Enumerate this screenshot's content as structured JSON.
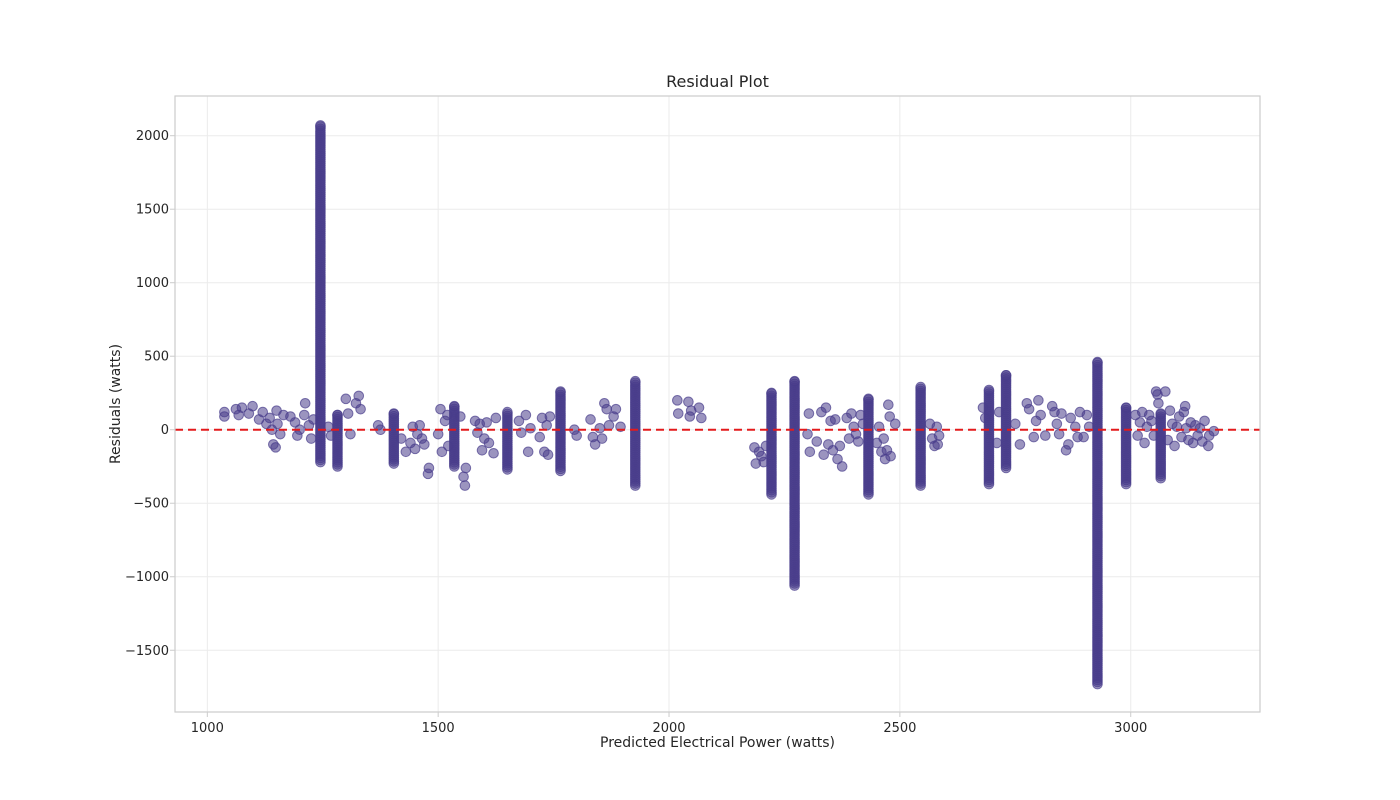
{
  "chart_data": {
    "type": "scatter",
    "title": "Residual Plot",
    "xlabel": "Predicted Electrical Power (watts)",
    "ylabel": "Residuals (watts)",
    "xlim": [
      930,
      3280
    ],
    "ylim": [
      -1920,
      2270
    ],
    "xticks": [
      1000,
      1500,
      2000,
      2500,
      3000
    ],
    "yticks": [
      -1500,
      -1000,
      -500,
      0,
      500,
      1000,
      1500,
      2000
    ],
    "xtick_labels": [
      "1000",
      "1500",
      "2000",
      "2500",
      "3000"
    ],
    "ytick_labels": [
      "−1500",
      "−1000",
      "−500",
      "0",
      "500",
      "1000",
      "1500",
      "2000"
    ],
    "grid": true,
    "reference_line": {
      "y": 0,
      "style": "dashed",
      "color": "#e31a1c"
    },
    "point_color": "#483D8B",
    "columns": [
      {
        "x": 1245,
        "ymin": -220,
        "ymax": 2070
      },
      {
        "x": 1282,
        "ymin": -250,
        "ymax": 100
      },
      {
        "x": 1404,
        "ymin": -230,
        "ymax": 110
      },
      {
        "x": 1535,
        "ymin": -250,
        "ymax": 160
      },
      {
        "x": 1650,
        "ymin": -270,
        "ymax": 120
      },
      {
        "x": 1765,
        "ymin": -280,
        "ymax": 260
      },
      {
        "x": 1927,
        "ymin": -380,
        "ymax": 330
      },
      {
        "x": 2222,
        "ymin": -440,
        "ymax": 250
      },
      {
        "x": 2272,
        "ymin": -1060,
        "ymax": 330
      },
      {
        "x": 2432,
        "ymin": -440,
        "ymax": 210
      },
      {
        "x": 2545,
        "ymin": -380,
        "ymax": 290
      },
      {
        "x": 2693,
        "ymin": -370,
        "ymax": 270
      },
      {
        "x": 2730,
        "ymin": -260,
        "ymax": 370
      },
      {
        "x": 2928,
        "ymin": -1730,
        "ymax": 460
      },
      {
        "x": 2990,
        "ymin": -370,
        "ymax": 150
      },
      {
        "x": 3065,
        "ymin": -330,
        "ymax": 110
      }
    ],
    "points": [
      [
        1037,
        120
      ],
      [
        1037,
        90
      ],
      [
        1062,
        140
      ],
      [
        1068,
        100
      ],
      [
        1075,
        150
      ],
      [
        1090,
        110
      ],
      [
        1098,
        160
      ],
      [
        1112,
        70
      ],
      [
        1120,
        120
      ],
      [
        1128,
        40
      ],
      [
        1135,
        80
      ],
      [
        1140,
        0
      ],
      [
        1143,
        -100
      ],
      [
        1148,
        -120
      ],
      [
        1150,
        130
      ],
      [
        1152,
        40
      ],
      [
        1158,
        -30
      ],
      [
        1165,
        100
      ],
      [
        1180,
        90
      ],
      [
        1190,
        50
      ],
      [
        1195,
        -40
      ],
      [
        1200,
        0
      ],
      [
        1210,
        100
      ],
      [
        1212,
        180
      ],
      [
        1220,
        30
      ],
      [
        1225,
        -60
      ],
      [
        1230,
        70
      ],
      [
        1262,
        20
      ],
      [
        1268,
        -40
      ],
      [
        1300,
        210
      ],
      [
        1305,
        110
      ],
      [
        1310,
        -30
      ],
      [
        1322,
        180
      ],
      [
        1328,
        230
      ],
      [
        1332,
        140
      ],
      [
        1370,
        30
      ],
      [
        1375,
        0
      ],
      [
        1420,
        -60
      ],
      [
        1430,
        -150
      ],
      [
        1440,
        -90
      ],
      [
        1445,
        20
      ],
      [
        1450,
        -130
      ],
      [
        1455,
        -30
      ],
      [
        1460,
        30
      ],
      [
        1465,
        -60
      ],
      [
        1470,
        -100
      ],
      [
        1478,
        -300
      ],
      [
        1480,
        -260
      ],
      [
        1500,
        -30
      ],
      [
        1505,
        140
      ],
      [
        1508,
        -150
      ],
      [
        1515,
        60
      ],
      [
        1520,
        100
      ],
      [
        1522,
        -110
      ],
      [
        1548,
        90
      ],
      [
        1555,
        -320
      ],
      [
        1558,
        -380
      ],
      [
        1560,
        -260
      ],
      [
        1580,
        60
      ],
      [
        1585,
        -20
      ],
      [
        1590,
        40
      ],
      [
        1595,
        -140
      ],
      [
        1600,
        -60
      ],
      [
        1605,
        50
      ],
      [
        1610,
        -90
      ],
      [
        1620,
        -160
      ],
      [
        1625,
        80
      ],
      [
        1675,
        60
      ],
      [
        1680,
        -20
      ],
      [
        1690,
        100
      ],
      [
        1695,
        -150
      ],
      [
        1700,
        10
      ],
      [
        1720,
        -50
      ],
      [
        1725,
        80
      ],
      [
        1730,
        -150
      ],
      [
        1735,
        30
      ],
      [
        1738,
        -170
      ],
      [
        1742,
        90
      ],
      [
        1795,
        0
      ],
      [
        1800,
        -40
      ],
      [
        1830,
        70
      ],
      [
        1835,
        -50
      ],
      [
        1840,
        -100
      ],
      [
        1850,
        10
      ],
      [
        1855,
        -60
      ],
      [
        1860,
        180
      ],
      [
        1865,
        140
      ],
      [
        1870,
        30
      ],
      [
        1880,
        90
      ],
      [
        1885,
        140
      ],
      [
        1895,
        20
      ],
      [
        2018,
        200
      ],
      [
        2020,
        110
      ],
      [
        2042,
        190
      ],
      [
        2045,
        90
      ],
      [
        2048,
        130
      ],
      [
        2065,
        150
      ],
      [
        2070,
        80
      ],
      [
        2185,
        -120
      ],
      [
        2188,
        -230
      ],
      [
        2195,
        -150
      ],
      [
        2200,
        -180
      ],
      [
        2205,
        -220
      ],
      [
        2210,
        -110
      ],
      [
        2300,
        -30
      ],
      [
        2303,
        110
      ],
      [
        2305,
        -150
      ],
      [
        2320,
        -80
      ],
      [
        2330,
        120
      ],
      [
        2335,
        -170
      ],
      [
        2340,
        150
      ],
      [
        2345,
        -100
      ],
      [
        2350,
        60
      ],
      [
        2355,
        -140
      ],
      [
        2360,
        70
      ],
      [
        2365,
        -200
      ],
      [
        2370,
        -110
      ],
      [
        2375,
        -250
      ],
      [
        2385,
        80
      ],
      [
        2390,
        -60
      ],
      [
        2395,
        110
      ],
      [
        2400,
        20
      ],
      [
        2405,
        -30
      ],
      [
        2410,
        -80
      ],
      [
        2415,
        100
      ],
      [
        2420,
        40
      ],
      [
        2450,
        -90
      ],
      [
        2455,
        20
      ],
      [
        2460,
        -150
      ],
      [
        2465,
        -60
      ],
      [
        2468,
        -200
      ],
      [
        2472,
        -140
      ],
      [
        2475,
        170
      ],
      [
        2478,
        90
      ],
      [
        2480,
        -180
      ],
      [
        2490,
        40
      ],
      [
        2565,
        40
      ],
      [
        2570,
        -60
      ],
      [
        2575,
        -110
      ],
      [
        2580,
        20
      ],
      [
        2582,
        -100
      ],
      [
        2585,
        -40
      ],
      [
        2680,
        150
      ],
      [
        2685,
        80
      ],
      [
        2710,
        -90
      ],
      [
        2715,
        120
      ],
      [
        2750,
        40
      ],
      [
        2760,
        -100
      ],
      [
        2775,
        180
      ],
      [
        2780,
        140
      ],
      [
        2790,
        -50
      ],
      [
        2795,
        60
      ],
      [
        2800,
        200
      ],
      [
        2805,
        100
      ],
      [
        2815,
        -40
      ],
      [
        2830,
        160
      ],
      [
        2835,
        120
      ],
      [
        2840,
        40
      ],
      [
        2845,
        -30
      ],
      [
        2850,
        110
      ],
      [
        2860,
        -140
      ],
      [
        2865,
        -100
      ],
      [
        2870,
        80
      ],
      [
        2880,
        20
      ],
      [
        2885,
        -50
      ],
      [
        2890,
        120
      ],
      [
        2898,
        -50
      ],
      [
        2905,
        100
      ],
      [
        2910,
        20
      ],
      [
        3010,
        100
      ],
      [
        3015,
        -40
      ],
      [
        3020,
        50
      ],
      [
        3025,
        120
      ],
      [
        3030,
        -90
      ],
      [
        3035,
        20
      ],
      [
        3040,
        100
      ],
      [
        3045,
        60
      ],
      [
        3050,
        -40
      ],
      [
        3055,
        260
      ],
      [
        3058,
        240
      ],
      [
        3060,
        180
      ],
      [
        3075,
        260
      ],
      [
        3080,
        -70
      ],
      [
        3085,
        130
      ],
      [
        3090,
        40
      ],
      [
        3095,
        -110
      ],
      [
        3100,
        20
      ],
      [
        3105,
        90
      ],
      [
        3110,
        -50
      ],
      [
        3115,
        120
      ],
      [
        3118,
        160
      ],
      [
        3120,
        10
      ],
      [
        3125,
        -70
      ],
      [
        3130,
        50
      ],
      [
        3135,
        -90
      ],
      [
        3140,
        30
      ],
      [
        3145,
        -40
      ],
      [
        3150,
        10
      ],
      [
        3155,
        -80
      ],
      [
        3160,
        60
      ],
      [
        3168,
        -110
      ],
      [
        3170,
        -40
      ],
      [
        3180,
        -10
      ]
    ]
  }
}
